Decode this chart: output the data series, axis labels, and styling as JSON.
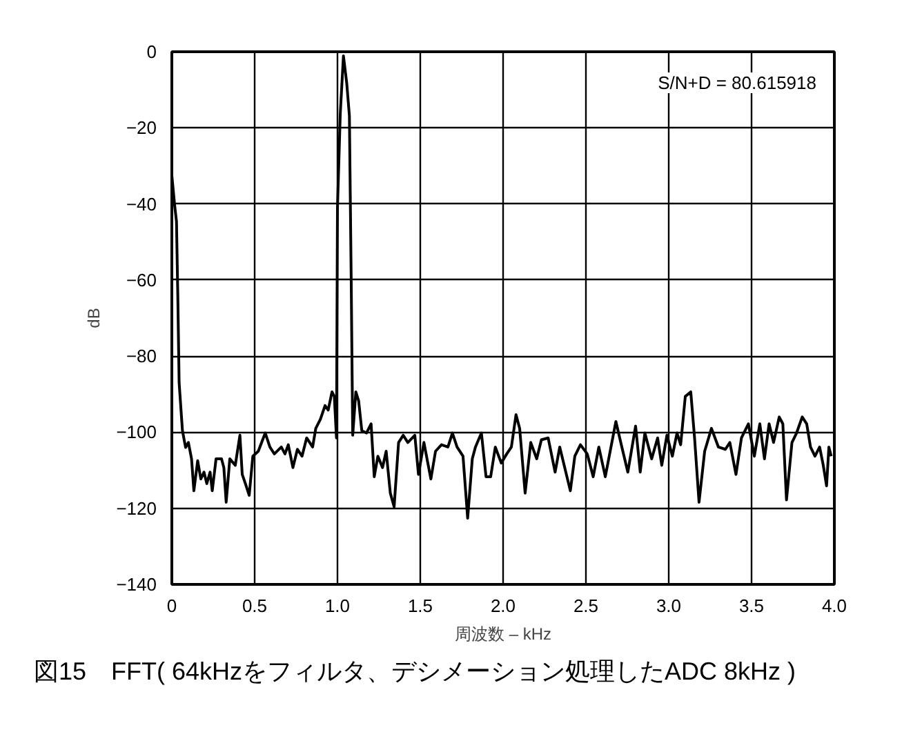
{
  "chart_data": {
    "type": "line",
    "title": "図15　FFT( 64kHzをフィルタ、デシメーション処理したADC 8kHz )",
    "xlabel": "周波数 – kHz",
    "ylabel": "dB",
    "annotations": [
      "S/N+D = 80.615918"
    ],
    "xlim": [
      0,
      4
    ],
    "ylim": [
      -140,
      0
    ],
    "xticks": [
      0,
      {
        "value": 0.5,
        "label": "0.5"
      },
      {
        "value": 1,
        "label": "1.0"
      },
      {
        "value": 1.5,
        "label": "1.5"
      },
      {
        "value": 2,
        "label": "2.0"
      },
      {
        "value": 2.5,
        "label": "2.5"
      },
      {
        "value": 3,
        "label": "3.0"
      },
      {
        "value": 3.5,
        "label": "3.5"
      },
      {
        "value": 4,
        "label": "4.0"
      }
    ],
    "yticks": [
      0,
      {
        "value": -20,
        "label": "−20"
      },
      {
        "value": -40,
        "label": "−40"
      },
      {
        "value": -60,
        "label": "−60"
      },
      {
        "value": -80,
        "label": "−80"
      },
      {
        "value": -100,
        "label": "−100"
      },
      {
        "value": -120,
        "label": "−120"
      },
      {
        "value": -140,
        "label": "−140"
      }
    ],
    "grid": true,
    "marker": "none",
    "line_style": "solid",
    "x": [
      0,
      0.017,
      0.028,
      0.036,
      0.044,
      0.064,
      0.083,
      0.1,
      0.119,
      0.133,
      0.156,
      0.175,
      0.194,
      0.211,
      0.231,
      0.244,
      0.267,
      0.3,
      0.314,
      0.328,
      0.35,
      0.383,
      0.411,
      0.425,
      0.444,
      0.467,
      0.489,
      0.522,
      0.564,
      0.592,
      0.619,
      0.661,
      0.683,
      0.703,
      0.731,
      0.758,
      0.786,
      0.814,
      0.85,
      0.869,
      0.897,
      0.925,
      0.944,
      0.967,
      0.981,
      0.994,
      1.0,
      1.017,
      1.036,
      1.056,
      1.072,
      1.083,
      1.092,
      1.111,
      1.128,
      1.147,
      1.175,
      1.203,
      1.222,
      1.244,
      1.272,
      1.294,
      1.319,
      1.342,
      1.369,
      1.397,
      1.425,
      1.467,
      1.489,
      1.522,
      1.564,
      1.592,
      1.628,
      1.667,
      1.694,
      1.722,
      1.758,
      1.786,
      1.814,
      1.833,
      1.869,
      1.897,
      1.925,
      1.953,
      1.989,
      2.022,
      2.05,
      2.078,
      2.1,
      2.133,
      2.167,
      2.203,
      2.231,
      2.272,
      2.314,
      2.342,
      2.406,
      2.433,
      2.467,
      2.508,
      2.544,
      2.578,
      2.617,
      2.681,
      2.717,
      2.753,
      2.8,
      2.828,
      2.856,
      2.897,
      2.933,
      2.958,
      2.989,
      3.022,
      3.05,
      3.072,
      3.1,
      3.133,
      3.156,
      3.183,
      3.217,
      3.258,
      3.3,
      3.342,
      3.369,
      3.406,
      3.439,
      3.481,
      3.517,
      3.55,
      3.578,
      3.606,
      3.633,
      3.667,
      3.689,
      3.711,
      3.744,
      3.772,
      3.806,
      3.833,
      3.856,
      3.883,
      3.911,
      3.933,
      3.953,
      3.967,
      3.981
    ],
    "series": [
      {
        "color": "#000000",
        "values": [
          -32.5,
          -40.4,
          -44.6,
          -64,
          -87,
          -99.6,
          -104,
          -102.7,
          -107,
          -115.4,
          -107.5,
          -112.3,
          -110.5,
          -113.5,
          -110.5,
          -115.4,
          -107,
          -107,
          -109.3,
          -118.4,
          -107,
          -108.7,
          -100.8,
          -111.1,
          -113.5,
          -116.6,
          -106.3,
          -105,
          -100.2,
          -103.9,
          -105.7,
          -103.9,
          -105.7,
          -103.3,
          -109.3,
          -104.5,
          -106.3,
          -101.5,
          -103.9,
          -99,
          -96.6,
          -93,
          -94.2,
          -89.4,
          -90.6,
          -101.5,
          -41,
          -16.2,
          -1.1,
          -8.3,
          -16.8,
          -60.3,
          -100.8,
          -89.4,
          -91.8,
          -99.6,
          -100.2,
          -97.8,
          -111.7,
          -106.3,
          -109.3,
          -105,
          -116,
          -119.6,
          -102.7,
          -100.8,
          -102.7,
          -100.8,
          -111.1,
          -102.7,
          -112.3,
          -105,
          -103.3,
          -103.9,
          -100.2,
          -103.9,
          -106.3,
          -122.6,
          -107,
          -103.9,
          -100.2,
          -111.7,
          -111.7,
          -103.9,
          -108.1,
          -105.7,
          -103.9,
          -95.4,
          -99,
          -116,
          -102.7,
          -107,
          -102,
          -101.5,
          -110.5,
          -103.9,
          -115.4,
          -106.3,
          -103.3,
          -105.7,
          -111.7,
          -103.9,
          -111.7,
          -97.2,
          -103.9,
          -110.5,
          -98.4,
          -110.5,
          -100.2,
          -107,
          -101.5,
          -108.7,
          -100.8,
          -106.3,
          -100.2,
          -103.3,
          -90.6,
          -89.4,
          -101.5,
          -118.4,
          -105,
          -99,
          -103.9,
          -104.5,
          -102.7,
          -111.1,
          -101.5,
          -97.8,
          -106.3,
          -97.8,
          -107,
          -97.8,
          -102.7,
          -96,
          -97.8,
          -117.8,
          -102.7,
          -100.2,
          -96,
          -97.8,
          -103.9,
          -106.3,
          -103.9,
          -108.7,
          -114.1,
          -103.9,
          -106.3
        ]
      }
    ]
  }
}
